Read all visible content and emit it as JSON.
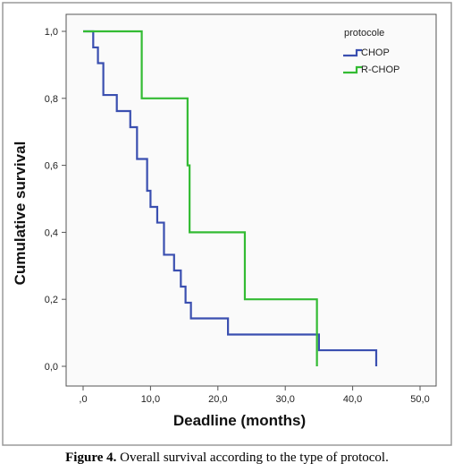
{
  "chart_data": {
    "type": "line",
    "title": "",
    "xlabel": "Deadline (months)",
    "ylabel": "Cumulative survival",
    "xlim": [
      0,
      50
    ],
    "ylim": [
      0,
      1
    ],
    "x_ticks": [
      ",0",
      "10,0",
      "20,0",
      "30,0",
      "40,0",
      "50,0"
    ],
    "y_ticks": [
      "0,0",
      "0,2",
      "0,4",
      "0,6",
      "0,8",
      "1,0"
    ],
    "legend_title": "protocole",
    "legend_position": "top-right",
    "step": true,
    "series": [
      {
        "name": "CHOP",
        "color": "#3a4fb0",
        "x": [
          0,
          1.5,
          2.2,
          3.0,
          5.0,
          7.0,
          8.0,
          9.5,
          10.0,
          11.0,
          12.0,
          13.5,
          14.5,
          15.2,
          16.0,
          21.5,
          35.0,
          43.5
        ],
        "y": [
          1.0,
          0.952,
          0.905,
          0.81,
          0.762,
          0.714,
          0.619,
          0.524,
          0.476,
          0.429,
          0.333,
          0.286,
          0.238,
          0.19,
          0.143,
          0.095,
          0.048,
          0.0
        ]
      },
      {
        "name": "R-CHOP",
        "color": "#33bb33",
        "x": [
          0,
          8.7,
          15.5,
          15.8,
          24.0,
          34.7
        ],
        "y": [
          1.0,
          0.8,
          0.6,
          0.4,
          0.2,
          0.0
        ]
      }
    ]
  },
  "caption": {
    "label": "Figure 4.",
    "text": " Overall survival according to the type of protocol."
  }
}
